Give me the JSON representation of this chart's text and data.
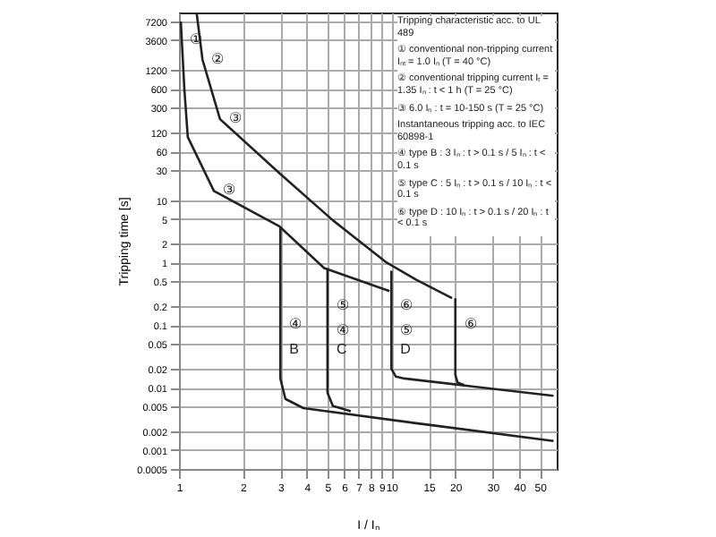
{
  "chart_data": {
    "type": "line",
    "xlabel": "I / Iₙ",
    "ylabel": "Tripping time [s]",
    "log": "xy",
    "grid": true,
    "xlim": [
      1,
      60
    ],
    "xticks": [
      1,
      2,
      3,
      4,
      5,
      6,
      7,
      8,
      9,
      10,
      15,
      20,
      30,
      40,
      50
    ],
    "ylim": [
      0.0005,
      10000
    ],
    "yticks": [
      0.0005,
      0.001,
      0.002,
      0.005,
      0.01,
      0.02,
      0.05,
      0.1,
      0.2,
      0.5,
      1,
      2,
      5,
      10,
      30,
      60,
      120,
      300,
      600,
      1200,
      3600,
      7200
    ],
    "series": [
      {
        "color": "#222222",
        "x": [
          1.02,
          1.06,
          1.1,
          1.46,
          2.97,
          4.82,
          9.8
        ],
        "values": [
          7200,
          590,
          102,
          14,
          3.8,
          0.82,
          0.35
        ]
      },
      {
        "color": "#222222",
        "x": [
          1.21,
          1.29,
          1.56,
          2.97,
          5.3,
          9.5,
          13.1,
          19.3
        ],
        "values": [
          10000,
          1770,
          197,
          27,
          4.75,
          1.0,
          0.53,
          0.27
        ]
      },
      {
        "color": "#222222",
        "x": [
          3,
          3,
          3.17,
          3.85,
          13.1,
          58
        ],
        "values": [
          3.8,
          0.014,
          0.0066,
          0.0047,
          0.0027,
          0.0014
        ]
      },
      {
        "color": "#222222",
        "x": [
          5,
          5,
          5.3,
          6.44
        ],
        "values": [
          0.82,
          0.0083,
          0.0051,
          0.0042
        ]
      },
      {
        "color": "#222222",
        "x": [
          10,
          10,
          10.5,
          11.5,
          58
        ],
        "values": [
          0.74,
          0.02,
          0.015,
          0.014,
          0.0074
        ]
      },
      {
        "color": "#222222",
        "x": [
          20,
          20,
          20.5,
          22
        ],
        "values": [
          0.27,
          0.016,
          0.012,
          0.011
        ]
      }
    ],
    "annotations": [
      "Tripping characteristic acc. to UL 489",
      "① conventional non-tripping current Iₙₜ = 1.0 Iₙ (T = 40 °C)",
      "② conventional tripping current Iₜ = 1.35 Iₙ : t < 1 h (T = 25 °C)",
      "③ 6.0 Iₙ : t = 10-150 s (T = 25 °C)",
      "Instantaneous tripping acc. to IEC 60898-1",
      "④ type B : 3 Iₙ : t > 0.1 s / 5 Iₙ : t < 0.1 s",
      "⑤ type C : 5 Iₙ : t > 0.1 s / 10 Iₙ : t < 0.1 s",
      "⑥ type D : 10 Iₙ : t > 0.1 s / 20 Iₙ : t < 0.1 s",
      {
        "text": "①",
        "x": 1.02,
        "y": 3600
      },
      {
        "text": "②",
        "x": 1.29,
        "y": 1770
      },
      {
        "text": "③",
        "x": 1.56,
        "y": 197
      },
      {
        "text": "③",
        "x": 1.46,
        "y": 14
      },
      {
        "text": "④",
        "x": 3,
        "y": 0.1
      },
      {
        "text": "④",
        "x": 5,
        "y": 0.08
      },
      {
        "text": "⑤",
        "x": 5,
        "y": 0.2
      },
      {
        "text": "⑤",
        "x": 10,
        "y": 0.08
      },
      {
        "text": "⑥",
        "x": 10,
        "y": 0.2
      },
      {
        "text": "⑥",
        "x": 20,
        "y": 0.1
      },
      {
        "text": "B",
        "x": 3,
        "y": 0.04
      },
      {
        "text": "C",
        "x": 5,
        "y": 0.04
      },
      {
        "text": "D",
        "x": 10,
        "y": 0.04
      }
    ]
  }
}
